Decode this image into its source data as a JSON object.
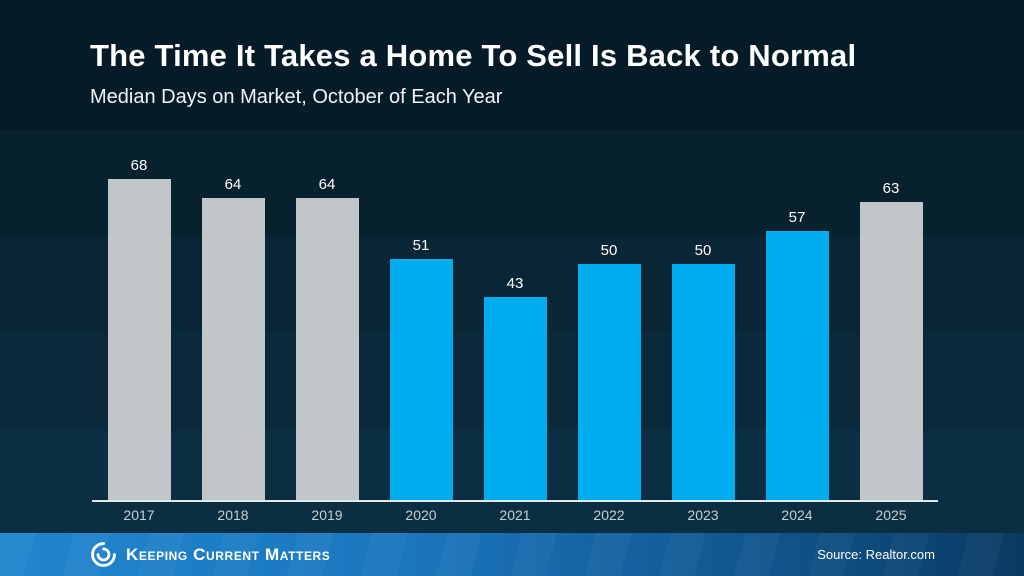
{
  "header": {
    "title": "The Time It Takes a Home To Sell Is Back to Normal",
    "subtitle": "Median Days on Market, October of Each Year"
  },
  "chart_data": {
    "type": "bar",
    "title": "The Time It Takes a Home To Sell Is Back to Normal",
    "subtitle": "Median Days on Market, October of Each Year",
    "categories": [
      "2017",
      "2018",
      "2019",
      "2020",
      "2021",
      "2022",
      "2023",
      "2024",
      "2025"
    ],
    "values": [
      68,
      64,
      64,
      51,
      43,
      50,
      50,
      57,
      63
    ],
    "bar_colors": [
      "#C1C6C9",
      "#C1C6C9",
      "#C1C6C9",
      "#00AEEF",
      "#00AEEF",
      "#00AEEF",
      "#00AEEF",
      "#00AEEF",
      "#C1C6C9"
    ],
    "xlabel": "",
    "ylabel": "",
    "ylim": [
      0,
      72
    ],
    "grid": false,
    "legend": false,
    "value_labels": true
  },
  "footer": {
    "brand": "Keeping Current Matters",
    "source": "Source: Realtor.com"
  },
  "colors": {
    "background_top": "#051B27",
    "background_bottom": "#0C2E42",
    "bar_gray": "#C1C6C9",
    "bar_blue": "#00AEEF",
    "axis_line": "#E4E7EA",
    "value_label_text": "#FFFFFF",
    "category_label_text": "#C7CED4",
    "footer_blue_left": "#2186CD",
    "footer_blue_right": "#093A62",
    "footer_text": "#FFFFFF"
  }
}
